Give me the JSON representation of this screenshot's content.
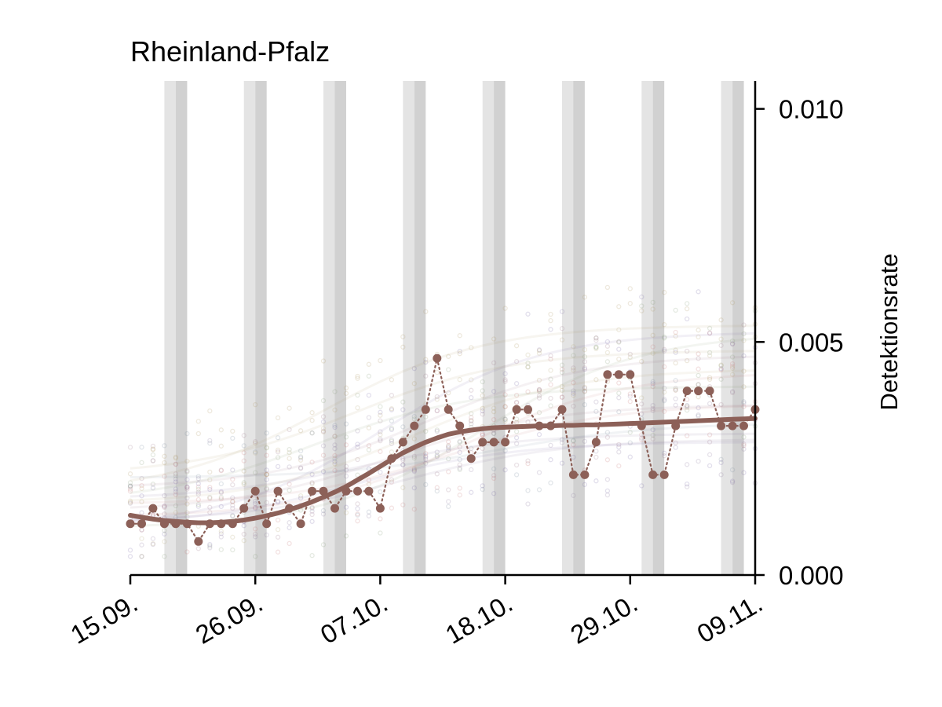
{
  "chart_data": {
    "type": "line",
    "title": "Rheinland-Pfalz",
    "xlabel": "",
    "ylabel": "Detektionsrate",
    "x_start": "15.09.",
    "x_end": "09.11.",
    "x_ticks": [
      "15.09.",
      "26.09.",
      "07.10.",
      "18.10.",
      "29.10.",
      "09.11."
    ],
    "y_ticks": [
      "0.000",
      "0.005",
      "0.010"
    ],
    "ylim": [
      0,
      0.0106
    ],
    "y_axis_side": "right",
    "grid": false,
    "legend": "none",
    "weekend_band_starts": [
      "18.09.",
      "25.09.",
      "02.10.",
      "09.10.",
      "16.10.",
      "23.10.",
      "30.10.",
      "06.11."
    ],
    "colors": {
      "main": "#8c6058",
      "band_light": "#e4e4e4",
      "band_dark": "#d1d1d1"
    },
    "series": [
      {
        "values": [
          0.0011,
          0.0011,
          0.00143,
          0.0011,
          0.0011,
          0.0011,
          0.00072,
          0.0011,
          0.0011,
          0.0011,
          0.00143,
          0.0018,
          0.0011,
          0.0018,
          0.00143,
          0.0011,
          0.0018,
          0.0018,
          0.00143,
          0.0018,
          0.0018,
          0.0018,
          0.00143,
          0.0025,
          0.00285,
          0.0032,
          0.00355,
          0.00465,
          0.00355,
          0.0032,
          0.0025,
          0.00285,
          0.00285,
          0.00285,
          0.00355,
          0.00355,
          0.0032,
          0.0032,
          0.00355,
          0.00215,
          0.00215,
          0.00285,
          0.0043,
          0.0043,
          0.0043,
          0.0032,
          0.00215,
          0.00215,
          0.0032,
          0.00395,
          0.00395,
          0.00395,
          0.0032,
          0.0032,
          0.0032,
          0.00355
        ],
        "trend": [
          0.00128,
          0.00124,
          0.0012,
          0.00117,
          0.00115,
          0.00113,
          0.00112,
          0.00112,
          0.00113,
          0.00115,
          0.00118,
          0.00122,
          0.00127,
          0.00133,
          0.0014,
          0.00148,
          0.00157,
          0.00167,
          0.00178,
          0.0019,
          0.00204,
          0.00218,
          0.00233,
          0.00248,
          0.00262,
          0.00274,
          0.00285,
          0.00294,
          0.00302,
          0.00307,
          0.00311,
          0.00314,
          0.00316,
          0.00317,
          0.00318,
          0.00319,
          0.0032,
          0.0032,
          0.00321,
          0.00321,
          0.00322,
          0.00322,
          0.00323,
          0.00324,
          0.00325,
          0.00326,
          0.00327,
          0.00328,
          0.00329,
          0.0033,
          0.00331,
          0.00332,
          0.00333,
          0.00334,
          0.00335,
          0.00336
        ]
      }
    ]
  }
}
